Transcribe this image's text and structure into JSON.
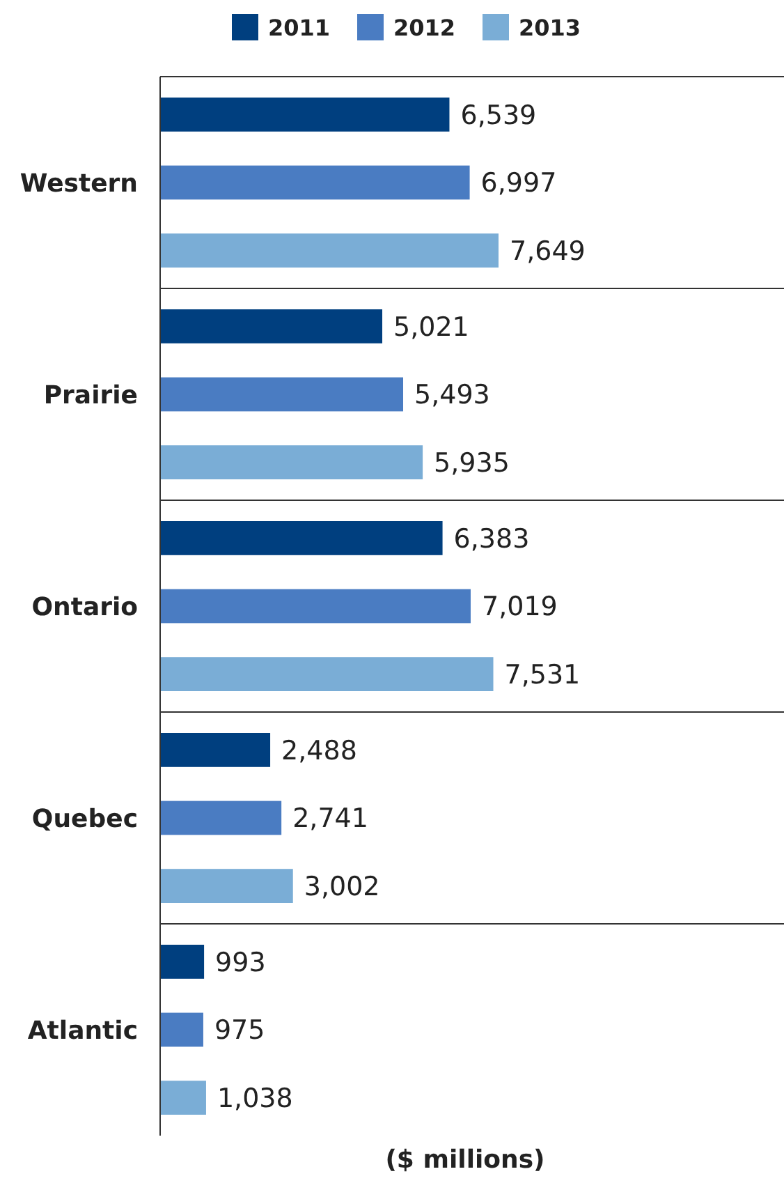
{
  "chart_data": {
    "type": "bar",
    "orientation": "horizontal",
    "xlabel": "($ millions)",
    "categories": [
      "Western",
      "Prairie",
      "Ontario",
      "Quebec",
      "Atlantic"
    ],
    "series": [
      {
        "name": "2011",
        "color": "#003f7f",
        "values": [
          6539,
          5021,
          6383,
          2488,
          993
        ],
        "value_labels": [
          "6,539",
          "5,021",
          "6,383",
          "2,488",
          "993"
        ]
      },
      {
        "name": "2012",
        "color": "#4a7cc2",
        "values": [
          6997,
          5493,
          7019,
          2741,
          975
        ],
        "value_labels": [
          "6,997",
          "5,493",
          "7,019",
          "2,741",
          "975"
        ]
      },
      {
        "name": "2013",
        "color": "#7aadd6",
        "values": [
          7649,
          5935,
          7531,
          3002,
          1038
        ],
        "value_labels": [
          "7,649",
          "5,935",
          "7,531",
          "3,002",
          "1,038"
        ]
      }
    ],
    "legend": "top"
  }
}
